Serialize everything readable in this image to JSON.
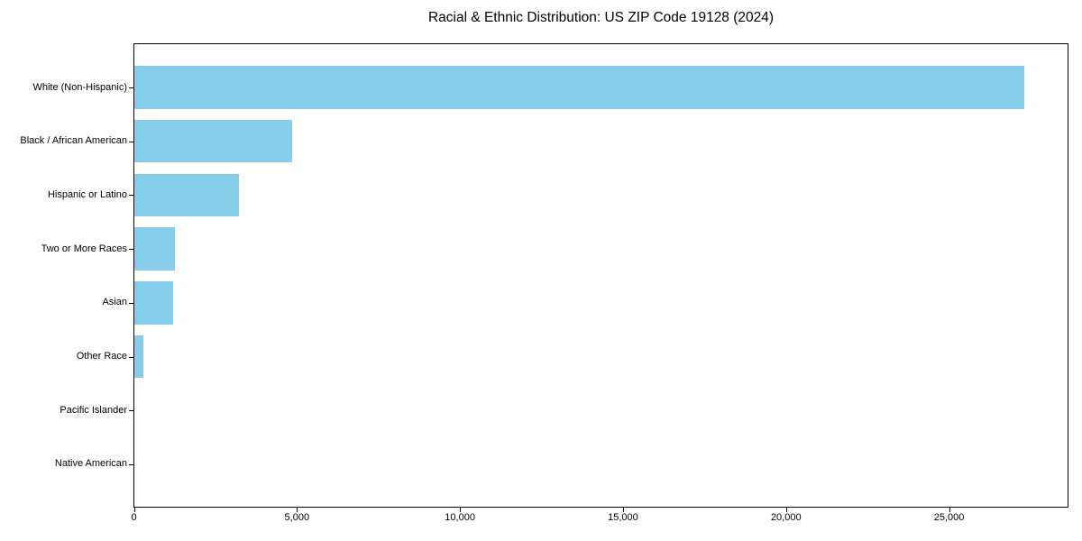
{
  "chart_data": {
    "type": "bar",
    "orientation": "horizontal",
    "title": "Racial & Ethnic Distribution: US ZIP Code 19128 (2024)",
    "categories": [
      "White (Non-Hispanic)",
      "Black / African American",
      "Hispanic or Latino",
      "Two or More Races",
      "Asian",
      "Other Race",
      "Pacific Islander",
      "Native American"
    ],
    "values": [
      27300,
      4840,
      3200,
      1250,
      1200,
      280,
      0,
      0
    ],
    "xlabel": "",
    "ylabel": "",
    "xlim": [
      0,
      28620
    ],
    "x_ticks": [
      0,
      5000,
      10000,
      15000,
      20000,
      25000
    ],
    "x_tick_labels": [
      "0",
      "5,000",
      "10,000",
      "15,000",
      "20,000",
      "25,000"
    ],
    "bar_color": "#87CEEB",
    "axis_color": "#000000",
    "grid": false,
    "legend": null
  }
}
